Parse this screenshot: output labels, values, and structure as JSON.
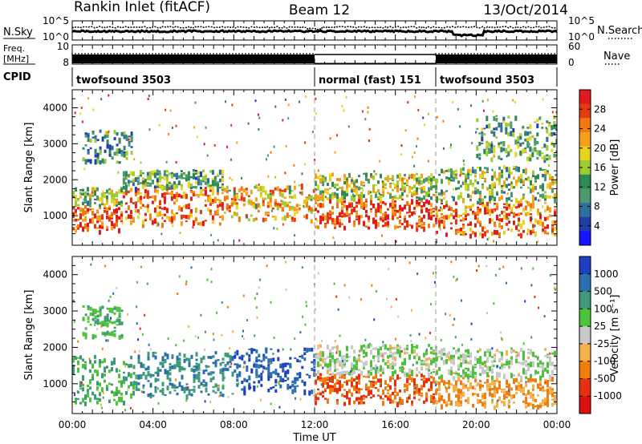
{
  "header": {
    "station": "Rankin Inlet (fitACF)",
    "beam": "Beam 12",
    "date": "13/Oct/2014"
  },
  "top_panels": {
    "nsky_label": "N.Sky",
    "nsky_ticks": [
      "10^5",
      "10^0"
    ],
    "nsearch_label": "N.Search",
    "nsearch_ticks": [
      "10^5",
      "10^0"
    ],
    "freq_label_1": "Freq.",
    "freq_label_2": "[MHz]",
    "freq_ticks": [
      "10",
      "8"
    ],
    "nave_label": "Nave",
    "nave_ticks": [
      "60",
      "0"
    ],
    "cpid_label": "CPID",
    "cpid_segments": [
      {
        "start_hour": 0,
        "end_hour": 12,
        "text": "twofsound 3503"
      },
      {
        "start_hour": 12,
        "end_hour": 18,
        "text": "normal (fast) 151"
      },
      {
        "start_hour": 18,
        "end_hour": 24,
        "text": "twofsound 3503"
      }
    ]
  },
  "chart_data": [
    {
      "type": "heatmap",
      "panel": "power",
      "x_ticks": [
        "00:00",
        "04:00",
        "08:00",
        "12:00",
        "16:00",
        "20:00",
        "00:00"
      ],
      "xlim_hours": [
        0,
        24
      ],
      "ylabel": "Slant Range [km]",
      "y_ticks": [
        1000,
        2000,
        3000,
        4000
      ],
      "ylim": [
        180,
        4500
      ],
      "colorbar_label": "Power [dB]",
      "colorbar_ticks": [
        "4",
        "8",
        "12",
        "16",
        "20",
        "24",
        "28"
      ],
      "colorbar_range": [
        0,
        30
      ],
      "colorbar_colors": [
        "#1515ff",
        "#1f3fa8",
        "#2f6f9e",
        "#4e9a6e",
        "#2e8b57",
        "#9acd32",
        "#e8d41e",
        "#f7a11a",
        "#f07a10",
        "#e63a12",
        "#e31a1c"
      ],
      "bands": [
        {
          "start_hour": 0,
          "end_hour": 2.5,
          "range_low": 600,
          "range_high": 1300,
          "value": 26
        },
        {
          "start_hour": 0,
          "end_hour": 2.5,
          "range_low": 1300,
          "range_high": 1800,
          "value": 14
        },
        {
          "start_hour": 2.5,
          "end_hour": 7.5,
          "range_low": 800,
          "range_high": 1800,
          "value": 24
        },
        {
          "start_hour": 2.5,
          "end_hour": 7.5,
          "range_low": 1800,
          "range_high": 2300,
          "value": 12
        },
        {
          "start_hour": 7.5,
          "end_hour": 12,
          "range_low": 900,
          "range_high": 1900,
          "value": 20
        },
        {
          "start_hour": 12,
          "end_hour": 18,
          "range_low": 700,
          "range_high": 1500,
          "value": 26
        },
        {
          "start_hour": 12,
          "end_hour": 18,
          "range_low": 1500,
          "range_high": 2200,
          "value": 16
        },
        {
          "start_hour": 18,
          "end_hour": 24,
          "range_low": 500,
          "range_high": 1400,
          "value": 24
        },
        {
          "start_hour": 18,
          "end_hour": 24,
          "range_low": 1400,
          "range_high": 2400,
          "value": 14
        },
        {
          "start_hour": 0.5,
          "end_hour": 3,
          "range_low": 2500,
          "range_high": 3400,
          "value": 10
        },
        {
          "start_hour": 20,
          "end_hour": 24,
          "range_low": 2600,
          "range_high": 3800,
          "value": 12
        }
      ]
    },
    {
      "type": "heatmap",
      "panel": "velocity",
      "x_ticks": [
        "00:00",
        "04:00",
        "08:00",
        "12:00",
        "16:00",
        "20:00",
        "00:00"
      ],
      "xlim_hours": [
        0,
        24
      ],
      "xlabel": "Time UT",
      "ylabel": "Slant Range [km]",
      "y_ticks": [
        1000,
        2000,
        3000,
        4000
      ],
      "ylim": [
        180,
        4500
      ],
      "colorbar_label": "Velocity [m s⁻¹]",
      "colorbar_ticks": [
        "1000",
        "500",
        "100",
        "25",
        "-25",
        "-100",
        "-500",
        "-1000"
      ],
      "colorbar_colors": [
        "#1f3fbf",
        "#2a6fae",
        "#3f9a7a",
        "#4cc33a",
        "#c9c9c9",
        "#f5b04a",
        "#f07d10",
        "#e83010",
        "#dd1010"
      ],
      "bands": [
        {
          "start_hour": 0,
          "end_hour": 3,
          "range_low": 500,
          "range_high": 1800,
          "value": 100
        },
        {
          "start_hour": 3,
          "end_hour": 8,
          "range_low": 700,
          "range_high": 1900,
          "value": 500
        },
        {
          "start_hour": 8,
          "end_hour": 12,
          "range_low": 800,
          "range_high": 2000,
          "value": 1000
        },
        {
          "start_hour": 12,
          "end_hour": 18,
          "range_low": 500,
          "range_high": 1300,
          "value": -500
        },
        {
          "start_hour": 12,
          "end_hour": 18,
          "range_low": 1300,
          "range_high": 2100,
          "value": 25
        },
        {
          "start_hour": 18,
          "end_hour": 24,
          "range_low": 400,
          "range_high": 1200,
          "value": -100
        },
        {
          "start_hour": 18,
          "end_hour": 24,
          "range_low": 1200,
          "range_high": 2000,
          "value": 25
        },
        {
          "start_hour": 0.5,
          "end_hour": 2.5,
          "range_low": 2300,
          "range_high": 3200,
          "value": 100
        }
      ]
    }
  ]
}
